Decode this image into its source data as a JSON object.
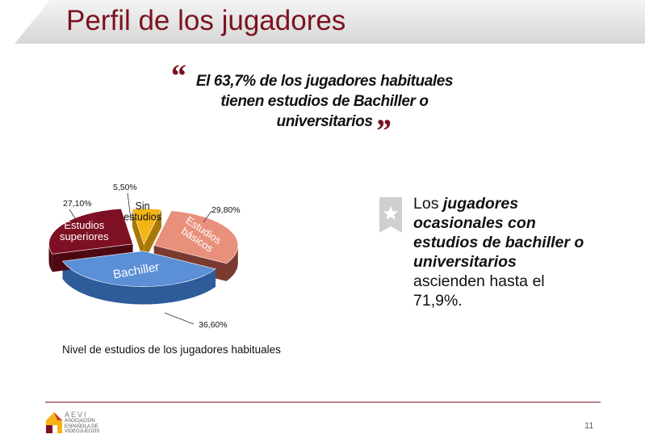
{
  "header": {
    "title": "Perfil de los jugadores"
  },
  "quote": {
    "open_mark": "“",
    "close_mark": "”",
    "lines": [
      "El 63,7% de los jugadores habituales",
      "tienen estudios de Bachiller o",
      "universitarios"
    ]
  },
  "side_note": {
    "lines": [
      [
        {
          "text": "Los ",
          "em": false
        },
        {
          "text": "jugadores",
          "em": true
        }
      ],
      [
        {
          "text": "ocasionales  con",
          "em": true
        }
      ],
      [
        {
          "text": "estudios de bachiller o",
          "em": true
        }
      ],
      [
        {
          "text": "universitarios",
          "em": true
        }
      ],
      [
        {
          "text": "ascienden hasta el",
          "em": false
        }
      ],
      [
        {
          "text": "71,9%.",
          "em": false
        }
      ]
    ]
  },
  "chart_data": {
    "type": "pie",
    "title": "Nivel de estudios de los jugadores habituales",
    "slices": [
      {
        "name": "Estudios básicos",
        "label_lines": [
          "Estudios",
          "básicos"
        ],
        "value": 29.8,
        "value_label": "29,80%",
        "color": "#e8907c",
        "side_color": "#7a3a30"
      },
      {
        "name": "Bachiller",
        "label_lines": [
          "Bachiller"
        ],
        "value": 36.6,
        "value_label": "36,60%",
        "color": "#5b8fd6",
        "side_color": "#2e5c9a"
      },
      {
        "name": "Estudios superiores",
        "label_lines": [
          "Estudios",
          "superiores"
        ],
        "value": 27.1,
        "value_label": "27,10%",
        "color": "#7e1024",
        "side_color": "#4e0814"
      },
      {
        "name": "Sin estudios",
        "label_lines": [
          "Sin",
          "estudios"
        ],
        "value": 5.5,
        "value_label": "5,50%",
        "color": "#f5b415",
        "side_color": "#a87906"
      }
    ]
  },
  "footer": {
    "logo_name": "AEVI",
    "logo_lines": [
      "ASOCIACIÓN",
      "ESPAÑOLA DE",
      "VIDEOJUEGOS"
    ],
    "page_number": "11"
  },
  "colors": {
    "accent": "#7b1320",
    "rule": "#8a1c2b"
  }
}
